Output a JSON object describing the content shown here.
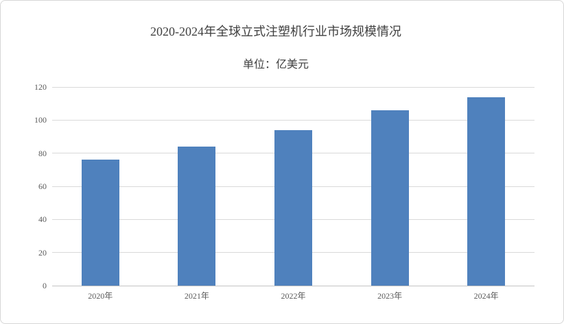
{
  "chart_data": {
    "type": "bar",
    "title": "2020-2024年全球立式注塑机行业市场规模情况",
    "subtitle": "单位：亿美元",
    "categories": [
      "2020年",
      "2021年",
      "2022年",
      "2023年",
      "2024年"
    ],
    "values": [
      76,
      84,
      94,
      106,
      114
    ],
    "xlabel": "",
    "ylabel": "",
    "ylim": [
      0,
      120
    ],
    "ytick_step": 20,
    "grid": true,
    "legend": false,
    "colors": {
      "bar": "#4F81BD",
      "gridline": "#D9D9D9",
      "axis_line": "#C3C3C3",
      "tick_text": "#595959",
      "title_text": "#404040",
      "card_border": "#D6D6D6",
      "background": "#FFFFFF"
    }
  }
}
